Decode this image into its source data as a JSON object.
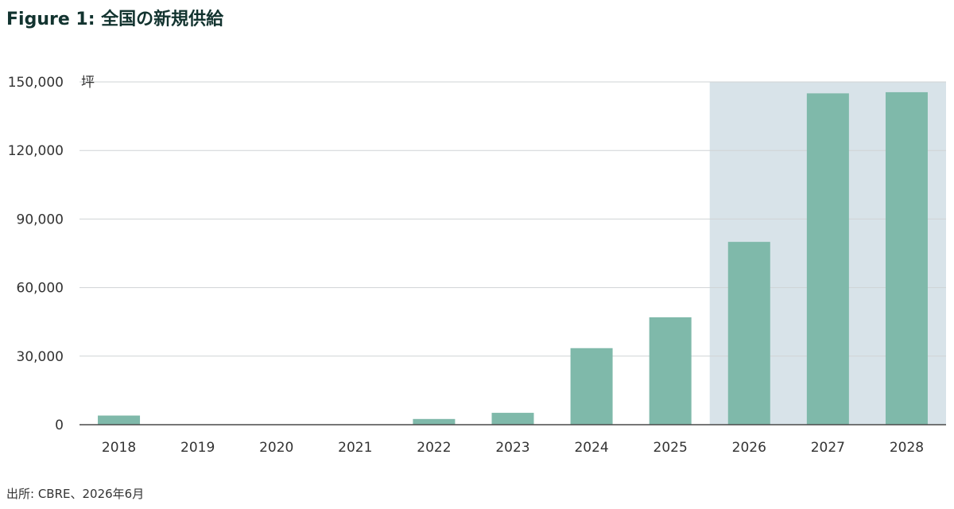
{
  "title": "Figure 1: 全国の新規供給",
  "source": "出所: CBRE、2026年6月",
  "chart_data": {
    "type": "bar",
    "unit_label": "坪",
    "categories": [
      "2018",
      "2019",
      "2020",
      "2021",
      "2022",
      "2023",
      "2024",
      "2025",
      "2026",
      "2027",
      "2028"
    ],
    "values": [
      4000,
      0,
      0,
      0,
      2500,
      5200,
      33500,
      47000,
      80000,
      145000,
      145500
    ],
    "ylim": [
      0,
      150000
    ],
    "yticks": [
      0,
      30000,
      60000,
      90000,
      120000,
      150000
    ],
    "ytick_labels": [
      "0",
      "30,000",
      "60,000",
      "90,000",
      "120,000",
      "150,000"
    ],
    "highlighted_categories": [
      "2026",
      "2027",
      "2028"
    ],
    "grid": true,
    "colors": {
      "bar": "#7fb9aa",
      "highlight_band": "#d8e3e9",
      "grid": "#cfd3d5",
      "axis": "#4a4a4a"
    }
  }
}
